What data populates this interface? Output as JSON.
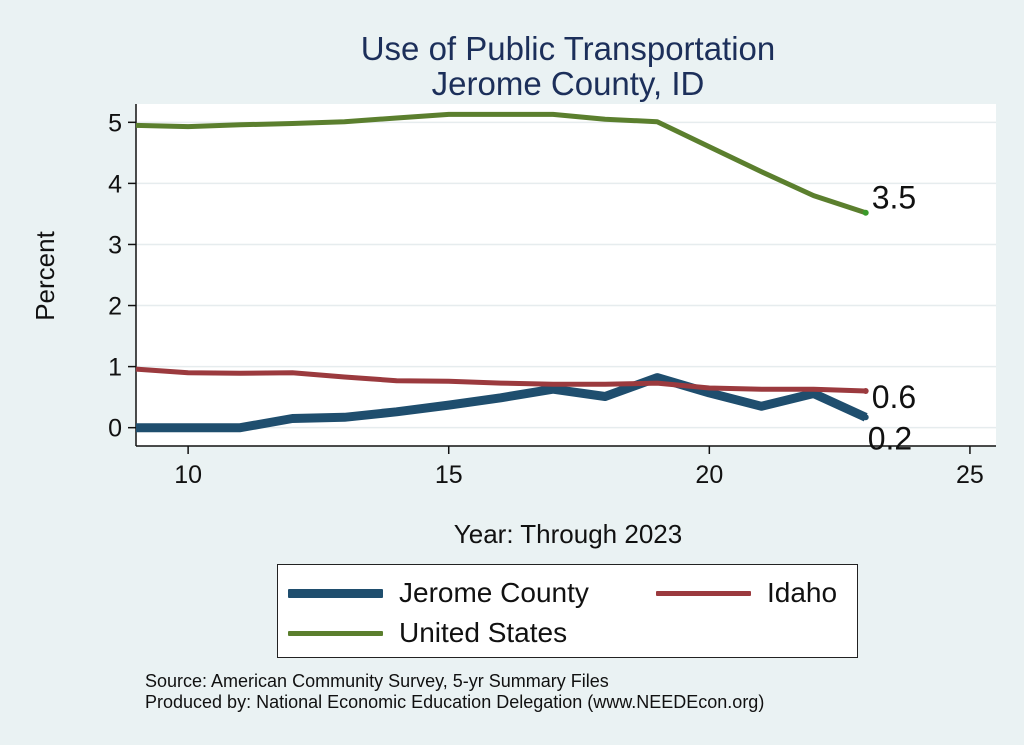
{
  "chart_data": {
    "type": "line",
    "title": "Use of Public Transportation",
    "subtitle": "Jerome County, ID",
    "xlabel": "Year: Through 2023",
    "ylabel": "Percent",
    "xlim": [
      9,
      25.5
    ],
    "ylim": [
      -0.3,
      5.3
    ],
    "xticks": [
      10,
      15,
      20,
      25
    ],
    "yticks": [
      0,
      1,
      2,
      3,
      4,
      5
    ],
    "grid": true,
    "legend_position": "bottom",
    "series": [
      {
        "name": "Jerome County",
        "color": "#1f4e6e",
        "stroke_width": 9,
        "x": [
          9,
          10,
          11,
          12,
          13,
          14,
          15,
          16,
          17,
          18,
          19,
          20,
          21,
          22,
          23
        ],
        "y": [
          0.0,
          0.0,
          0.0,
          0.15,
          0.17,
          0.26,
          0.37,
          0.49,
          0.63,
          0.51,
          0.82,
          0.57,
          0.35,
          0.56,
          0.17
        ]
      },
      {
        "name": "Idaho",
        "color": "#9b3a3e",
        "stroke_width": 5,
        "x": [
          9,
          10,
          11,
          12,
          13,
          14,
          15,
          16,
          17,
          18,
          19,
          20,
          21,
          22,
          23
        ],
        "y": [
          0.96,
          0.9,
          0.89,
          0.9,
          0.83,
          0.77,
          0.76,
          0.73,
          0.71,
          0.71,
          0.73,
          0.65,
          0.63,
          0.63,
          0.6
        ]
      },
      {
        "name": "United States",
        "color": "#5b7f2e",
        "stroke_width": 5,
        "x": [
          9,
          10,
          11,
          12,
          13,
          14,
          15,
          16,
          17,
          18,
          19,
          20,
          21,
          22,
          23
        ],
        "y": [
          4.95,
          4.93,
          4.96,
          4.98,
          5.01,
          5.07,
          5.13,
          5.13,
          5.13,
          5.05,
          5.01,
          4.6,
          4.19,
          3.8,
          3.52
        ]
      }
    ],
    "end_labels": [
      {
        "series": "United States",
        "text": "3.5",
        "x": 23,
        "y": 3.52
      },
      {
        "series": "Idaho",
        "text": "0.6",
        "x": 23,
        "y": 0.6
      },
      {
        "series": "Jerome County",
        "text": "0.2",
        "x": 23,
        "y": 0.17
      }
    ]
  },
  "legend": {
    "items": [
      "Jerome County",
      "Idaho",
      "United States"
    ]
  },
  "notes": {
    "source": "Source: American Community Survey, 5-yr Summary Files",
    "produced": "Produced by: National Economic Education Delegation (www.NEEDEcon.org)"
  }
}
